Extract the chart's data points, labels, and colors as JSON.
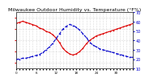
{
  "title": "Milwaukee Outdoor Humidity vs. Temperature (°F%)",
  "background_color": "#ffffff",
  "grid_color": "#bbbbbb",
  "temp_color": "#dd0000",
  "humidity_color": "#0000cc",
  "temp_values": [
    75,
    76,
    77,
    76,
    75,
    74,
    73,
    71,
    70,
    68,
    67,
    65,
    62,
    58,
    53,
    50,
    48,
    47,
    48,
    50,
    53,
    57,
    60,
    62,
    64,
    65,
    66,
    67,
    68,
    69,
    70,
    71,
    72,
    73,
    74,
    75
  ],
  "humidity_values": [
    20,
    20,
    21,
    21,
    22,
    23,
    24,
    25,
    27,
    30,
    33,
    37,
    42,
    47,
    52,
    55,
    57,
    56,
    54,
    51,
    47,
    43,
    38,
    35,
    33,
    31,
    30,
    29,
    28,
    27,
    26,
    25,
    24,
    23,
    22,
    22
  ],
  "temp_ylim": [
    35,
    85
  ],
  "humidity_ylim": [
    10,
    70
  ],
  "temp_ytick_values": [
    40,
    50,
    60,
    70,
    80
  ],
  "temp_ytick_labels": [
    "40",
    "50",
    "60",
    "70",
    "80"
  ],
  "humidity_ytick_values": [
    10,
    20,
    30,
    40,
    50,
    60,
    70
  ],
  "humidity_ytick_labels": [
    "10",
    "20",
    "30",
    "40",
    "50",
    "60",
    "70"
  ],
  "title_fontsize": 4.5,
  "tick_fontsize": 3.5,
  "linewidth": 0.8,
  "markersize": 1.2,
  "n_xticks": 30
}
